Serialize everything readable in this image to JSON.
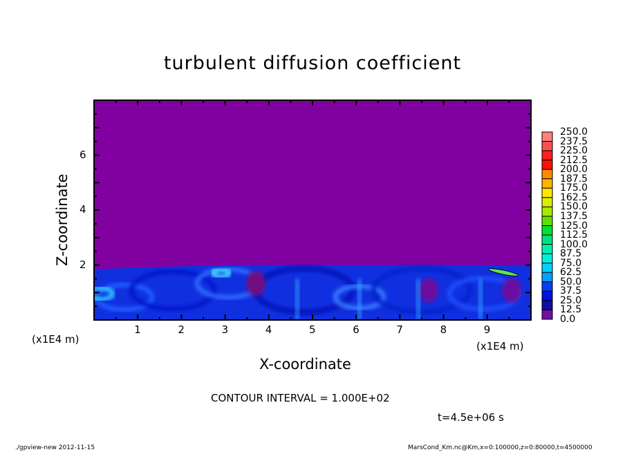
{
  "chart_data": {
    "type": "heatmap",
    "title": "turbulent diffusion coefficient",
    "xlabel": "X-coordinate",
    "ylabel": "Z-coordinate",
    "x_unit_label": "(x1E4 m)",
    "x_unit_label_right": "(x1E4 m)",
    "xlim": [
      0,
      10
    ],
    "ylim": [
      0,
      8
    ],
    "x_ticks": [
      "1",
      "2",
      "3",
      "4",
      "5",
      "6",
      "7",
      "8",
      "9"
    ],
    "y_ticks": [
      "2",
      "4",
      "6"
    ],
    "grid": false,
    "colorbar": {
      "placement": "right",
      "labels": [
        "250.0",
        "237.5",
        "225.0",
        "212.5",
        "200.0",
        "187.5",
        "175.0",
        "162.5",
        "150.0",
        "137.5",
        "125.0",
        "112.5",
        "100.0",
        "87.5",
        "75.0",
        "62.5",
        "50.0",
        "37.5",
        "25.0",
        "12.5",
        "0.0"
      ],
      "colors": [
        "#ff8080",
        "#ff5050",
        "#ff2020",
        "#ff1000",
        "#ff5000",
        "#ff8800",
        "#ffb400",
        "#ffe600",
        "#d8f000",
        "#a8e800",
        "#60e000",
        "#20e000",
        "#00e030",
        "#00e080",
        "#00f0b0",
        "#00f0e0",
        "#00d0ff",
        "#00a0ff",
        "#0070ff",
        "#0040f0",
        "#0010e0",
        "#1010a0",
        "#7010a0"
      ]
    },
    "field_summary": {
      "background_value": 0.0,
      "mixed_layer_top_z": 2.0,
      "typical_value_in_layer": "25.0-75.0"
    }
  },
  "annotations": {
    "contour_interval": "CONTOUR INTERVAL = 1.000E+02",
    "time": "t=4.5e+06 s",
    "footer_left": "./gpview-new  2012-11-15",
    "footer_right": "MarsCond_Km.nc@Km,x=0:100000,z=0:80000,t=4500000"
  },
  "colors": {
    "background_field": "#8000a0",
    "frame": "#000000"
  }
}
